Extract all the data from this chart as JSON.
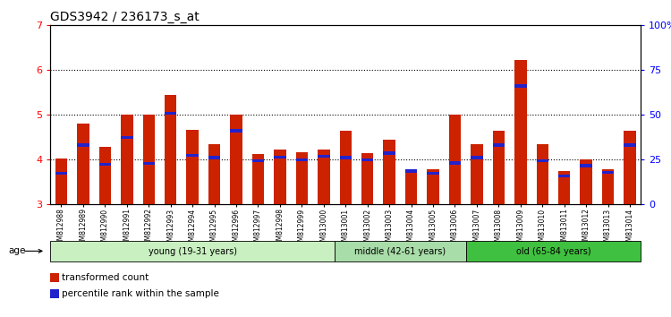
{
  "title": "GDS3942 / 236173_s_at",
  "samples": [
    "GSM812988",
    "GSM812989",
    "GSM812990",
    "GSM812991",
    "GSM812992",
    "GSM812993",
    "GSM812994",
    "GSM812995",
    "GSM812996",
    "GSM812997",
    "GSM812998",
    "GSM812999",
    "GSM813000",
    "GSM813001",
    "GSM813002",
    "GSM813003",
    "GSM813004",
    "GSM813005",
    "GSM813006",
    "GSM813007",
    "GSM813008",
    "GSM813009",
    "GSM813010",
    "GSM813011",
    "GSM813012",
    "GSM813013",
    "GSM813014"
  ],
  "red_values": [
    4.02,
    4.8,
    4.28,
    5.0,
    5.0,
    5.44,
    4.67,
    4.35,
    5.0,
    4.12,
    4.22,
    4.16,
    4.22,
    4.65,
    4.15,
    4.45,
    3.78,
    3.78,
    5.0,
    4.35,
    4.65,
    6.22,
    4.35,
    3.75,
    4.0,
    3.78,
    4.65
  ],
  "blue_values": [
    3.7,
    4.33,
    3.9,
    4.5,
    3.92,
    5.04,
    4.1,
    4.05,
    4.65,
    3.98,
    4.06,
    4.0,
    4.08,
    4.05,
    4.0,
    4.15,
    3.75,
    3.7,
    3.93,
    4.05,
    4.33,
    5.65,
    3.98,
    3.64,
    3.87,
    3.72,
    4.33
  ],
  "ylim": [
    3,
    7
  ],
  "yticks": [
    3,
    4,
    5,
    6,
    7
  ],
  "right_yticks": [
    0,
    25,
    50,
    75,
    100
  ],
  "right_ylabels": [
    "0",
    "25",
    "50",
    "75",
    "100%"
  ],
  "groups": [
    {
      "label": "young (19-31 years)",
      "start": 0,
      "end": 13,
      "color": "#c8f0c0"
    },
    {
      "label": "middle (42-61 years)",
      "start": 13,
      "end": 19,
      "color": "#a8dca8"
    },
    {
      "label": "old (65-84 years)",
      "start": 19,
      "end": 27,
      "color": "#40c040"
    }
  ],
  "bar_color": "#cc2200",
  "blue_color": "#2222cc",
  "bar_width": 0.55,
  "legend_red": "transformed count",
  "legend_blue": "percentile rank within the sample",
  "age_label": "age",
  "title_fontsize": 10,
  "tick_label_fontsize": 5.5
}
